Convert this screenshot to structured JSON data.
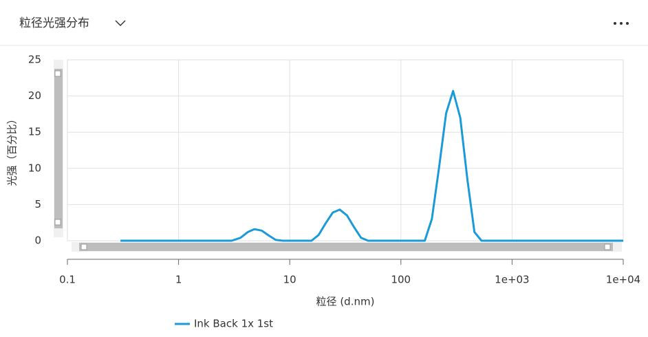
{
  "header": {
    "title": "粒径光强分布"
  },
  "chart_data": {
    "type": "line",
    "xlabel": "粒径 (d.nm)",
    "ylabel": "光强（百分比）",
    "x": [
      0.3,
      3.0,
      3.6,
      4.2,
      4.8,
      5.6,
      6.5,
      7.5,
      8.7,
      15.7,
      18.2,
      21,
      24.4,
      28.2,
      32.7,
      37.8,
      43.8,
      50.7,
      164,
      190,
      220,
      255,
      295,
      342,
      396,
      459,
      531,
      10000
    ],
    "series": [
      {
        "name": "Ink Back 1x 1st",
        "color": "#1a9ad6",
        "values": [
          0,
          0,
          0.4,
          1.2,
          1.6,
          1.4,
          0.7,
          0.1,
          0,
          0,
          0.8,
          2.4,
          3.9,
          4.3,
          3.5,
          1.9,
          0.4,
          0,
          0,
          3.0,
          10,
          17.6,
          20.7,
          17,
          8.5,
          1.2,
          0,
          0
        ]
      }
    ],
    "xscale": "log",
    "xlim": [
      0.1,
      10000
    ],
    "xticks": [
      0.1,
      1,
      10,
      100,
      {
        "value": 1000,
        "label": "1e+03"
      },
      {
        "value": 10000,
        "label": "1e+04"
      }
    ],
    "ylim": [
      0,
      25
    ],
    "yticks": [
      0,
      5,
      10,
      15,
      20,
      25
    ],
    "grid": true
  }
}
